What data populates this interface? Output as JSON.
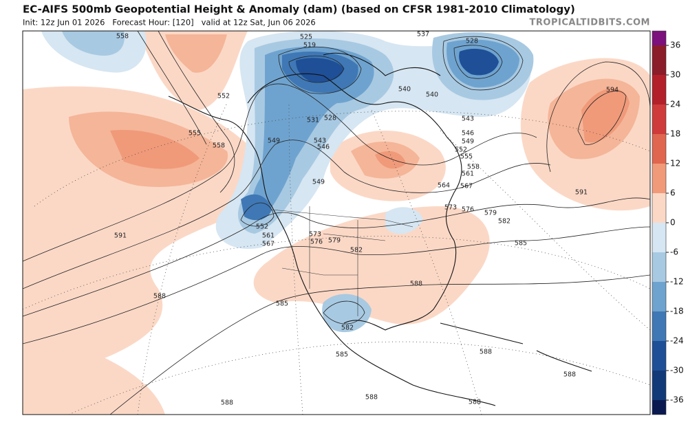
{
  "header": {
    "title": "EC-AIFS 500mb Geopotential Height & Anomaly (dam) (based on CFSR 1981-2010 Climatology)",
    "subtitle": "Init: 12z Jun 01 2026   Forecast Hour: [120]   valid at 12z Sat, Jun 06 2026",
    "site": "TROPICALTIDBITS.COM"
  },
  "colorbar": {
    "ticks": [
      36,
      30,
      24,
      18,
      12,
      6,
      0,
      -6,
      -12,
      -18,
      -24,
      -30,
      -36
    ],
    "colors": [
      "#8b1c2a",
      "#b3202a",
      "#cf3b3a",
      "#e0664f",
      "#f09a7a",
      "#fbd8c6",
      "#d6e6f2",
      "#a8c9e2",
      "#6fa3cf",
      "#3f78b5",
      "#1f4f96",
      "#123a78"
    ],
    "top_color": "#7c107c",
    "bottom_color": "#0a1a50"
  },
  "contour_labels": [
    558,
    525,
    519,
    537,
    528,
    594,
    552,
    555,
    558,
    540,
    540,
    543,
    546,
    549,
    552,
    555,
    558,
    561,
    564,
    567,
    573,
    576,
    579,
    582,
    585,
    591,
    591,
    549,
    543,
    546,
    531,
    528,
    549,
    552,
    561,
    567,
    573,
    576,
    579,
    582,
    588,
    588,
    585,
    582,
    585,
    588,
    588,
    588,
    588,
    588
  ]
}
